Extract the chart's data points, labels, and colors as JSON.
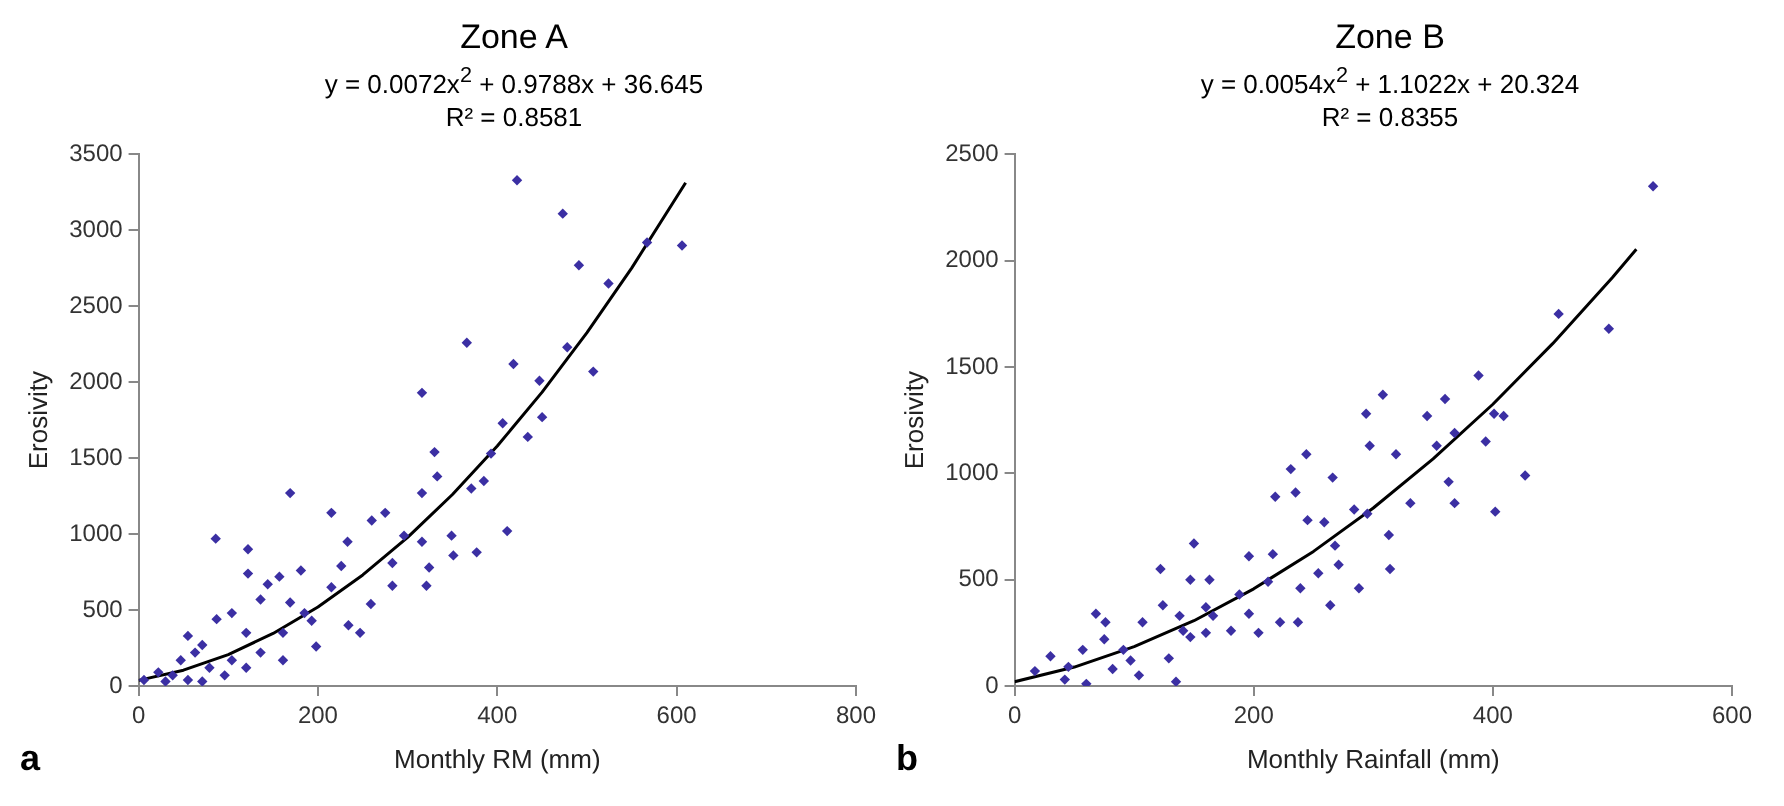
{
  "chart_data": [
    {
      "type": "scatter",
      "title": "Zone  A",
      "subtitle": "y = 0.0072x$^{2}$ + 0.9788x + 36.645",
      "annotations": [
        "R² = 0.8581",
        "a"
      ],
      "xlabel": "Monthly RM (mm)",
      "ylabel": "Erosivity",
      "xlim": [
        0,
        800
      ],
      "xticks": [
        0,
        200,
        400,
        600,
        800
      ],
      "ylim": [
        0,
        3500
      ],
      "yticks": [
        0,
        500,
        1000,
        1500,
        2000,
        2500,
        3000,
        3500
      ],
      "grid": false,
      "legend": false,
      "series": [
        {
          "marker": "diamond",
          "color": "#3b2fa3",
          "x": [
            422,
            473,
            491,
            524,
            567,
            606,
            478,
            507,
            366,
            418,
            447,
            316,
            406,
            450,
            434,
            330,
            393,
            333,
            385,
            371,
            316,
            169,
            411,
            215,
            260,
            275,
            86,
            122,
            316,
            349,
            296,
            377,
            351,
            233,
            283,
            324,
            226,
            321,
            283,
            122,
            144,
            181,
            157,
            215,
            259,
            169,
            136,
            234,
            198,
            247,
            193,
            161,
            120,
            104,
            87,
            55,
            71,
            136,
            104,
            47,
            22,
            38,
            6,
            79,
            63,
            96,
            120,
            161,
            55,
            71,
            30,
            185
          ],
          "values": [
            3330,
            3110,
            2770,
            2650,
            2920,
            2900,
            2230,
            2070,
            2260,
            2120,
            2010,
            1930,
            1730,
            1770,
            1640,
            1540,
            1530,
            1380,
            1350,
            1300,
            1270,
            1270,
            1020,
            1140,
            1090,
            1140,
            970,
            900,
            950,
            990,
            990,
            880,
            860,
            950,
            810,
            780,
            790,
            660,
            660,
            740,
            670,
            760,
            720,
            650,
            540,
            550,
            570,
            400,
            260,
            350,
            430,
            350,
            350,
            480,
            440,
            330,
            270,
            220,
            170,
            170,
            90,
            70,
            40,
            120,
            220,
            70,
            120,
            170,
            40,
            30,
            30,
            480
          ]
        },
        {
          "type": "line",
          "marker": "none",
          "color": "#000000",
          "x": [
            0,
            50,
            100,
            150,
            200,
            250,
            300,
            350,
            400,
            450,
            500,
            550,
            610
          ],
          "values": [
            37,
            104,
            207,
            346,
            520,
            731,
            978,
            1261,
            1580,
            1935,
            2326,
            2753,
            3313
          ]
        }
      ]
    },
    {
      "type": "scatter",
      "title": "Zone  B",
      "subtitle": "y = 0.0054x$^{2}$ + 1.1022x + 20.324",
      "annotations": [
        "R² = 0.8355",
        "b"
      ],
      "xlabel": "Monthly Rainfall (mm)",
      "ylabel": "Erosivity",
      "xlim": [
        0,
        600
      ],
      "xticks": [
        0,
        200,
        400,
        600
      ],
      "ylim": [
        0,
        2500
      ],
      "yticks": [
        0,
        500,
        1000,
        1500,
        2000,
        2500
      ],
      "grid": false,
      "legend": false,
      "series": [
        {
          "marker": "diamond",
          "color": "#3b2fa3",
          "x": [
            534,
            455,
            497,
            388,
            308,
            360,
            294,
            345,
            401,
            409,
            244,
            368,
            297,
            353,
            394,
            319,
            231,
            266,
            427,
            218,
            235,
            363,
            331,
            368,
            284,
            402,
            245,
            259,
            295,
            313,
            268,
            216,
            196,
            122,
            150,
            147,
            163,
            212,
            239,
            254,
            271,
            314,
            288,
            264,
            188,
            196,
            222,
            204,
            237,
            166,
            181,
            160,
            138,
            124,
            107,
            68,
            76,
            75,
            57,
            30,
            91,
            104,
            135,
            141,
            45,
            17,
            60,
            82,
            97,
            129,
            147,
            160,
            42
          ],
          "values": [
            2350,
            1750,
            1680,
            1460,
            1370,
            1350,
            1280,
            1270,
            1280,
            1270,
            1090,
            1190,
            1130,
            1130,
            1150,
            1090,
            1020,
            980,
            990,
            890,
            910,
            960,
            860,
            860,
            830,
            820,
            780,
            770,
            810,
            710,
            660,
            620,
            610,
            550,
            670,
            500,
            500,
            490,
            460,
            530,
            570,
            550,
            460,
            380,
            430,
            340,
            300,
            250,
            300,
            330,
            260,
            370,
            330,
            380,
            300,
            340,
            300,
            220,
            170,
            140,
            170,
            50,
            20,
            260,
            90,
            70,
            10,
            80,
            120,
            130,
            230,
            250,
            30
          ]
        },
        {
          "type": "line",
          "marker": "none",
          "color": "#000000",
          "x": [
            0,
            50,
            100,
            150,
            200,
            250,
            300,
            350,
            400,
            450,
            500,
            520
          ],
          "values": [
            20,
            89,
            185,
            307,
            457,
            633,
            837,
            1068,
            1325,
            1610,
            1921,
            2054
          ]
        }
      ]
    }
  ]
}
